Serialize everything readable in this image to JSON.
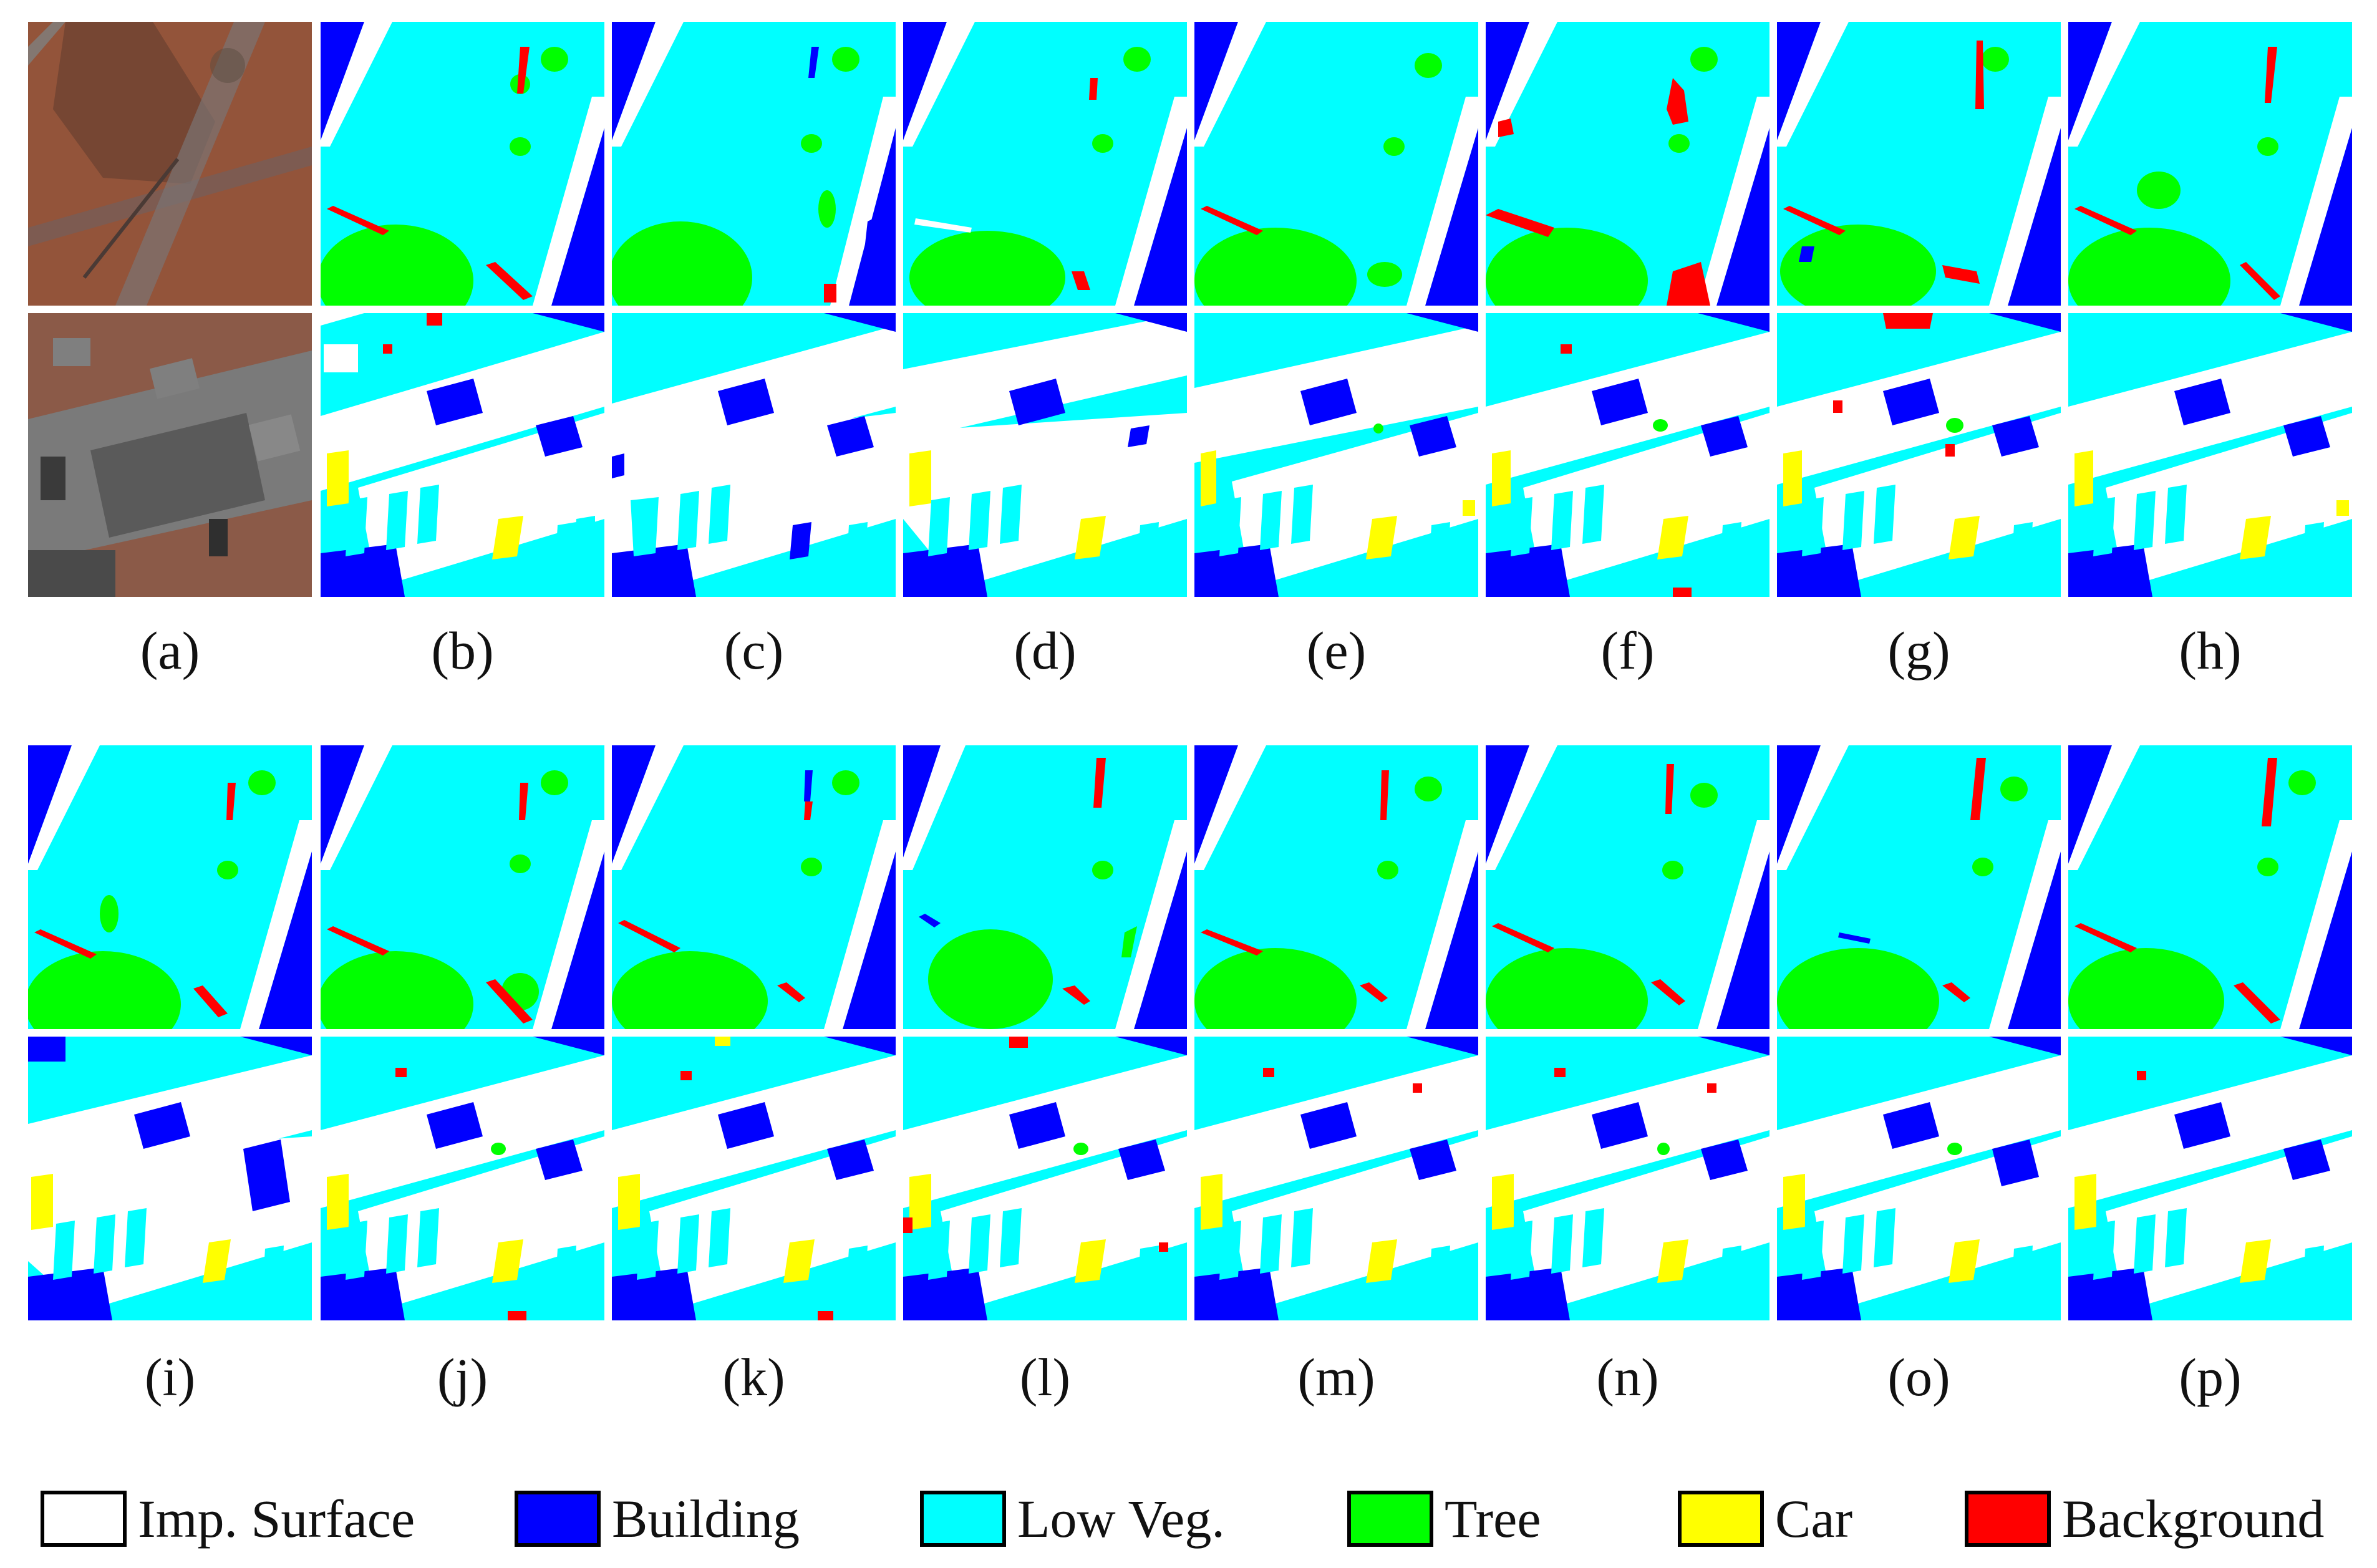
{
  "figure": {
    "panels": [
      {
        "id": "a",
        "caption": "(a)"
      },
      {
        "id": "b",
        "caption": "(b)"
      },
      {
        "id": "c",
        "caption": "(c)"
      },
      {
        "id": "d",
        "caption": "(d)"
      },
      {
        "id": "e",
        "caption": "(e)"
      },
      {
        "id": "f",
        "caption": "(f)"
      },
      {
        "id": "g",
        "caption": "(g)"
      },
      {
        "id": "h",
        "caption": "(h)"
      },
      {
        "id": "i",
        "caption": "(i)"
      },
      {
        "id": "j",
        "caption": "(j)"
      },
      {
        "id": "k",
        "caption": "(k)"
      },
      {
        "id": "l",
        "caption": "(l)"
      },
      {
        "id": "m",
        "caption": "(m)"
      },
      {
        "id": "n",
        "caption": "(n)"
      },
      {
        "id": "o",
        "caption": "(o)"
      },
      {
        "id": "p",
        "caption": "(p)"
      }
    ],
    "legend": [
      {
        "label": "Imp. Surface",
        "color": "#ffffff"
      },
      {
        "label": "Building",
        "color": "#0000ff"
      },
      {
        "label": "Low Veg.",
        "color": "#00ffff"
      },
      {
        "label": "Tree",
        "color": "#00ff00"
      },
      {
        "label": "Car",
        "color": "#ffff00"
      },
      {
        "label": "Background",
        "color": "#ff0000"
      }
    ]
  }
}
